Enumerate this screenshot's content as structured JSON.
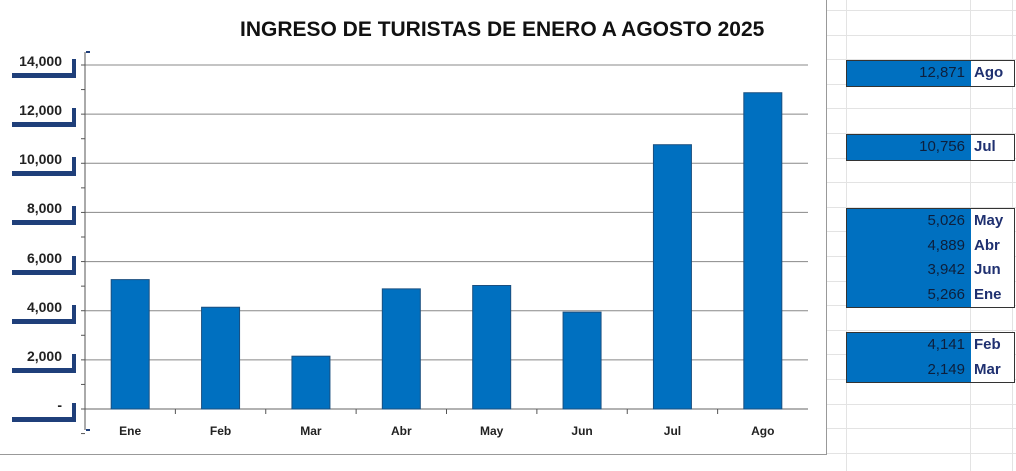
{
  "chart_data": {
    "type": "bar",
    "title": "INGRESO DE TURISTAS DE ENERO A AGOSTO 2025",
    "categories": [
      "Ene",
      "Feb",
      "Mar",
      "Abr",
      "May",
      "Jun",
      "Jul",
      "Ago"
    ],
    "values": [
      5266,
      4141,
      2149,
      4889,
      5026,
      3942,
      10756,
      12871
    ],
    "ylim": [
      0,
      14000
    ],
    "yticks": [
      "-",
      "2,000",
      "4,000",
      "6,000",
      "8,000",
      "10,000",
      "12,000",
      "14,000"
    ],
    "xlabel": "",
    "ylabel": "",
    "grid": true,
    "bar_color": "#0070c0"
  },
  "side_table": [
    [
      {
        "value": "12,871",
        "month": "Ago"
      }
    ],
    [
      {
        "value": "10,756",
        "month": "Jul"
      }
    ],
    [
      {
        "value": "5,026",
        "month": "May"
      },
      {
        "value": "4,889",
        "month": "Abr"
      },
      {
        "value": "3,942",
        "month": "Jun"
      },
      {
        "value": "5,266",
        "month": "Ene"
      }
    ],
    [
      {
        "value": "4,141",
        "month": "Feb"
      },
      {
        "value": "2,149",
        "month": "Mar"
      }
    ]
  ]
}
